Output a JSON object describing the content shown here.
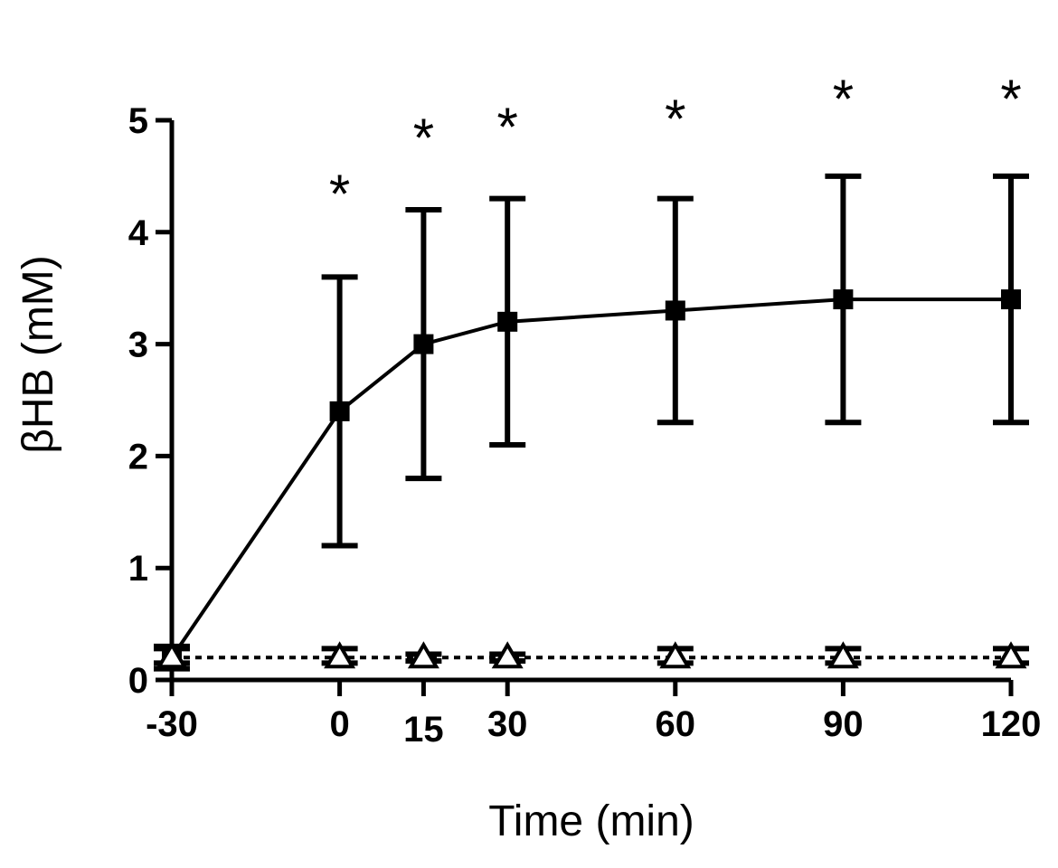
{
  "chart_data": {
    "type": "line",
    "title": "",
    "xlabel": "Time (min)",
    "ylabel": "βHB (mM)",
    "x": [
      -30,
      0,
      15,
      30,
      60,
      90,
      120
    ],
    "x_tick_labels": [
      "-30",
      "0",
      "15",
      "30",
      "60",
      "90",
      "120"
    ],
    "y_ticks": [
      0,
      1,
      2,
      3,
      4,
      5
    ],
    "y_tick_labels": [
      "0",
      "1",
      "2",
      "3",
      "4",
      "5"
    ],
    "xlim": [
      -30,
      120
    ],
    "ylim": [
      0,
      5
    ],
    "grid": false,
    "legend": "none",
    "series": [
      {
        "marker": "filled-square",
        "line_style": "solid",
        "x": [
          -30,
          0,
          15,
          30,
          60,
          90,
          120
        ],
        "values": [
          0.2,
          2.4,
          3.0,
          3.2,
          3.3,
          3.4,
          3.4
        ],
        "error_low": [
          0.1,
          1.2,
          1.8,
          2.1,
          2.3,
          2.3,
          2.3
        ],
        "error_high": [
          0.3,
          3.6,
          4.2,
          4.3,
          4.3,
          4.5,
          4.5
        ]
      },
      {
        "marker": "open-triangle",
        "line_style": "dotted",
        "x": [
          -30,
          0,
          15,
          30,
          60,
          90,
          120
        ],
        "values": [
          0.2,
          0.2,
          0.2,
          0.2,
          0.2,
          0.2,
          0.2
        ],
        "error_low": [
          0.15,
          0.15,
          0.17,
          0.17,
          0.15,
          0.15,
          0.15
        ],
        "error_high": [
          0.28,
          0.28,
          0.23,
          0.23,
          0.28,
          0.28,
          0.28
        ]
      }
    ],
    "annotations": [
      {
        "x": 0,
        "y": 4.45,
        "text": "*"
      },
      {
        "x": 15,
        "y": 4.95,
        "text": "*"
      },
      {
        "x": 30,
        "y": 5.05,
        "text": "*"
      },
      {
        "x": 60,
        "y": 5.12,
        "text": "*"
      },
      {
        "x": 90,
        "y": 5.3,
        "text": "*"
      },
      {
        "x": 120,
        "y": 5.3,
        "text": "*"
      }
    ]
  }
}
